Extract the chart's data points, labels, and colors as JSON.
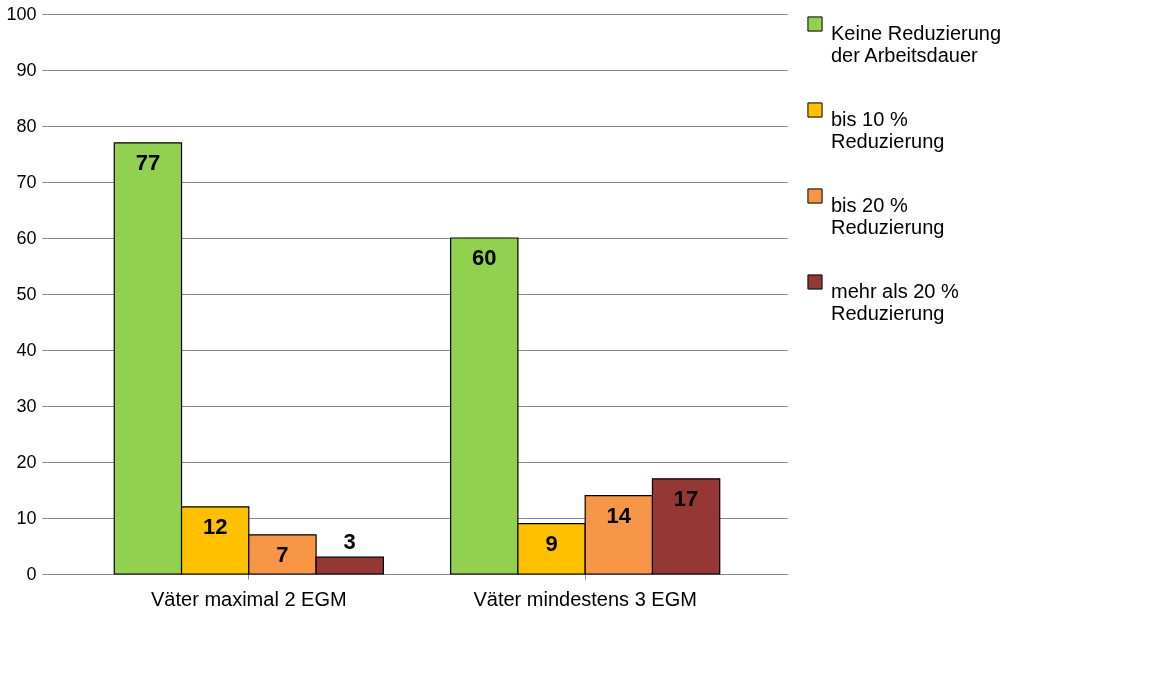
{
  "chart_data": {
    "type": "bar",
    "categories": [
      "Väter maximal 2 EGM",
      "Väter mindestens 3 EGM"
    ],
    "series": [
      {
        "name": "Keine Reduzierung der Arbeitsdauer",
        "color": "#92d050",
        "values": [
          77,
          60
        ]
      },
      {
        "name": "bis 10 % Reduzierung",
        "color": "#ffc000",
        "values": [
          12,
          9
        ]
      },
      {
        "name": "bis 20 % Reduzierung",
        "color": "#f79646",
        "values": [
          7,
          14
        ]
      },
      {
        "name": "mehr als 20 % Reduzierung",
        "color": "#953735",
        "values": [
          3,
          17
        ]
      }
    ],
    "ylim": [
      0,
      100
    ],
    "yticks": [
      0,
      10,
      20,
      30,
      40,
      50,
      60,
      70,
      80,
      90,
      100
    ],
    "grid": "y",
    "legend": "right",
    "data_labels": true
  }
}
